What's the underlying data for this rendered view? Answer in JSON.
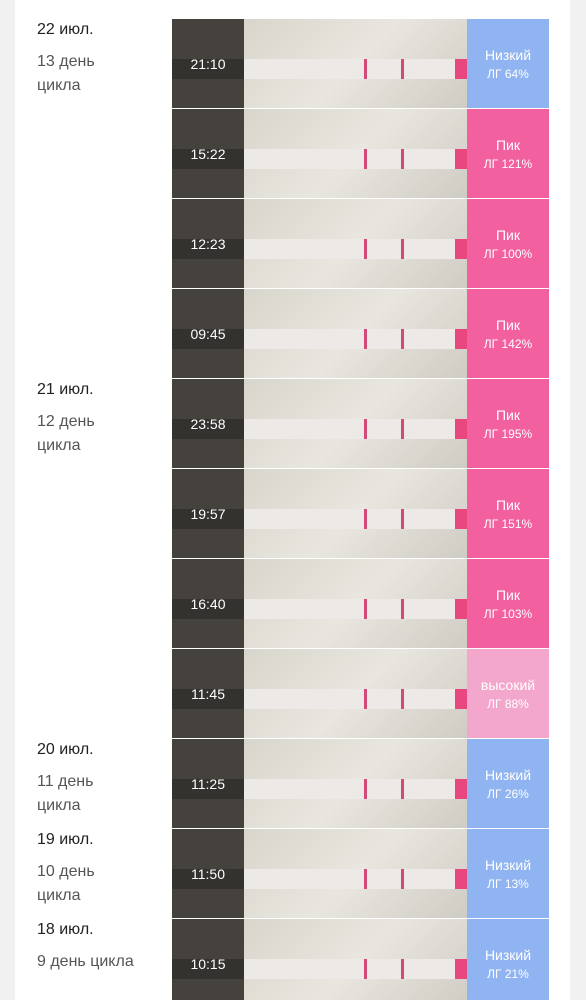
{
  "days": [
    {
      "date": "22 июл.",
      "cycle": "13 день цикла",
      "tests": [
        {
          "time": "21:10",
          "level": "Низкий",
          "lh": "ЛГ 64%",
          "color": "#90b4f1"
        },
        {
          "time": "15:22",
          "level": "Пик",
          "lh": "ЛГ 121%",
          "color": "#f2609f"
        },
        {
          "time": "12:23",
          "level": "Пик",
          "lh": "ЛГ 100%",
          "color": "#f2609f"
        },
        {
          "time": "09:45",
          "level": "Пик",
          "lh": "ЛГ 142%",
          "color": "#f2609f"
        }
      ]
    },
    {
      "date": "21 июл.",
      "cycle": "12 день цикла",
      "tests": [
        {
          "time": "23:58",
          "level": "Пик",
          "lh": "ЛГ 195%",
          "color": "#f2609f"
        },
        {
          "time": "19:57",
          "level": "Пик",
          "lh": "ЛГ 151%",
          "color": "#f2609f"
        },
        {
          "time": "16:40",
          "level": "Пик",
          "lh": "ЛГ 103%",
          "color": "#f2609f"
        },
        {
          "time": "11:45",
          "level": "высокий",
          "lh": "ЛГ 88%",
          "color": "#f4a7cd"
        }
      ]
    },
    {
      "date": "20 июл.",
      "cycle": "11 день цикла",
      "tests": [
        {
          "time": "11:25",
          "level": "Низкий",
          "lh": "ЛГ 26%",
          "color": "#90b4f1"
        }
      ]
    },
    {
      "date": "19 июл.",
      "cycle": "10 день цикла",
      "tests": [
        {
          "time": "11:50",
          "level": "Низкий",
          "lh": "ЛГ 13%",
          "color": "#90b4f1"
        }
      ]
    },
    {
      "date": "18 июл.",
      "cycle": "9 день цикла",
      "tests": [
        {
          "time": "10:15",
          "level": "Низкий",
          "lh": "ЛГ 21%",
          "color": "#90b4f1"
        }
      ]
    }
  ]
}
